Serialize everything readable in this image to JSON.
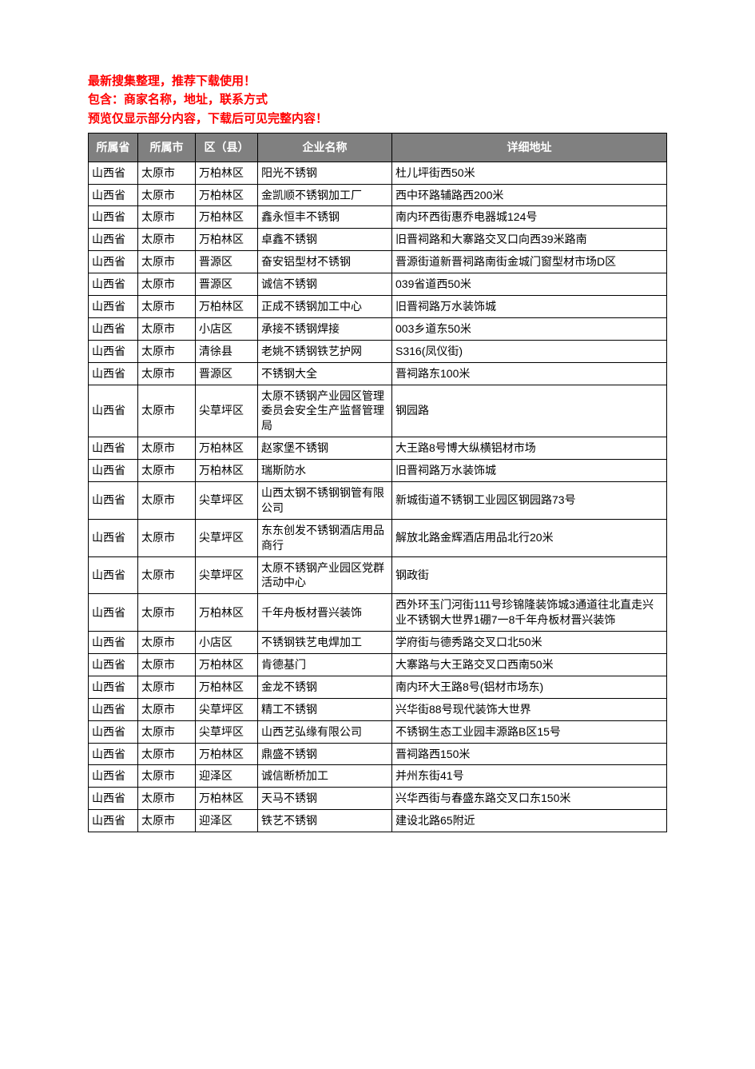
{
  "promo": {
    "line1": "最新搜集整理，推荐下载使用！",
    "line2": "包含：商家名称，地址，联系方式",
    "line3": "预览仅显示部分内容，下载后可见完整内容！"
  },
  "table": {
    "headers": {
      "province": "所属省",
      "city": "所属市",
      "district": "区（县）",
      "name": "企业名称",
      "address": "详细地址"
    },
    "rows": [
      {
        "province": "山西省",
        "city": "太原市",
        "district": "万柏林区",
        "name": "阳光不锈钢",
        "address": "杜儿坪街西50米"
      },
      {
        "province": "山西省",
        "city": "太原市",
        "district": "万柏林区",
        "name": "金凯顺不锈钢加工厂",
        "address": "西中环路辅路西200米"
      },
      {
        "province": "山西省",
        "city": "太原市",
        "district": "万柏林区",
        "name": "鑫永恒丰不锈钢",
        "address": "南内环西街惠乔电器城124号"
      },
      {
        "province": "山西省",
        "city": "太原市",
        "district": "万柏林区",
        "name": "卓鑫不锈钢",
        "address": "旧晋祠路和大寨路交叉口向西39米路南"
      },
      {
        "province": "山西省",
        "city": "太原市",
        "district": "晋源区",
        "name": "奋安铝型材不锈钢",
        "address": "晋源街道新晋祠路南街金城门窗型材市场D区"
      },
      {
        "province": "山西省",
        "city": "太原市",
        "district": "晋源区",
        "name": "诚信不锈钢",
        "address": "039省道西50米"
      },
      {
        "province": "山西省",
        "city": "太原市",
        "district": "万柏林区",
        "name": "正成不锈钢加工中心",
        "address": "旧晋祠路万水装饰城"
      },
      {
        "province": "山西省",
        "city": "太原市",
        "district": "小店区",
        "name": "承接不锈钢焊接",
        "address": "003乡道东50米"
      },
      {
        "province": "山西省",
        "city": "太原市",
        "district": "清徐县",
        "name": "老姚不锈钢铁艺护网",
        "address": "S316(凤仪街)"
      },
      {
        "province": "山西省",
        "city": "太原市",
        "district": "晋源区",
        "name": "不锈钢大全",
        "address": "晋祠路东100米"
      },
      {
        "province": "山西省",
        "city": "太原市",
        "district": "尖草坪区",
        "name": "太原不锈钢产业园区管理委员会安全生产监督管理局",
        "address": "钢园路"
      },
      {
        "province": "山西省",
        "city": "太原市",
        "district": "万柏林区",
        "name": "赵家堡不锈钢",
        "address": "大王路8号博大纵横铝材市场"
      },
      {
        "province": "山西省",
        "city": "太原市",
        "district": "万柏林区",
        "name": "瑞斯防水",
        "address": "旧晋祠路万水装饰城"
      },
      {
        "province": "山西省",
        "city": "太原市",
        "district": "尖草坪区",
        "name": "山西太钢不锈钢钢管有限公司",
        "address": "新城街道不锈钢工业园区钢园路73号"
      },
      {
        "province": "山西省",
        "city": "太原市",
        "district": "尖草坪区",
        "name": "东东创发不锈钢酒店用品商行",
        "address": "解放北路金辉酒店用品北行20米"
      },
      {
        "province": "山西省",
        "city": "太原市",
        "district": "尖草坪区",
        "name": "太原不锈钢产业园区党群活动中心",
        "address": "钢政街"
      },
      {
        "province": "山西省",
        "city": "太原市",
        "district": "万柏林区",
        "name": "千年舟板材晋兴装饰",
        "address": "西外环玉门河街111号珍锦隆装饰城3通道往北直走兴业不锈钢大世界1硼7一8千年舟板材晋兴装饰"
      },
      {
        "province": "山西省",
        "city": "太原市",
        "district": "小店区",
        "name": "不锈钢铁艺电焊加工",
        "address": "学府街与德秀路交叉口北50米"
      },
      {
        "province": "山西省",
        "city": "太原市",
        "district": "万柏林区",
        "name": "肯德基门",
        "address": "大寨路与大王路交叉口西南50米"
      },
      {
        "province": "山西省",
        "city": "太原市",
        "district": "万柏林区",
        "name": "金龙不锈钢",
        "address": "南内环大王路8号(铝材市场东)"
      },
      {
        "province": "山西省",
        "city": "太原市",
        "district": "尖草坪区",
        "name": "精工不锈钢",
        "address": "兴华街88号现代装饰大世界"
      },
      {
        "province": "山西省",
        "city": "太原市",
        "district": "尖草坪区",
        "name": "山西艺弘缘有限公司",
        "address": "不锈钢生态工业园丰源路B区15号"
      },
      {
        "province": "山西省",
        "city": "太原市",
        "district": "万柏林区",
        "name": "鼎盛不锈钢",
        "address": "晋祠路西150米"
      },
      {
        "province": "山西省",
        "city": "太原市",
        "district": "迎泽区",
        "name": "诚信断桥加工",
        "address": "并州东街41号"
      },
      {
        "province": "山西省",
        "city": "太原市",
        "district": "万柏林区",
        "name": "天马不锈钢",
        "address": "兴华西街与春盛东路交叉口东150米"
      },
      {
        "province": "山西省",
        "city": "太原市",
        "district": "迎泽区",
        "name": "铁艺不锈钢",
        "address": "建设北路65附近"
      }
    ]
  },
  "colors": {
    "header_bg": "#808080",
    "header_text": "#ffffff",
    "promo_text": "#ff0000",
    "cell_text": "#000000",
    "border": "#000000",
    "background": "#ffffff"
  }
}
